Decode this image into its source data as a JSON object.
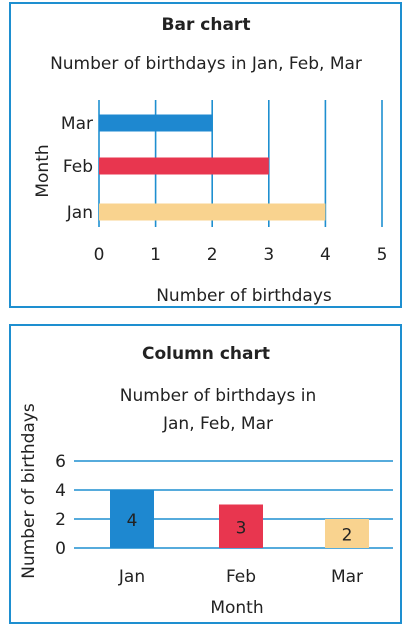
{
  "charts": [
    {
      "heading": "Bar chart",
      "title": "Number of birthdays in Jan, Feb, Mar",
      "xlabel": "Number of birthdays",
      "ylabel": "Month"
    },
    {
      "heading": "Column chart",
      "title_lines": [
        "Number of birthdays in",
        "Jan, Feb, Mar"
      ],
      "xlabel": "Month",
      "ylabel": "Number of birthdays"
    }
  ],
  "chart_data": [
    {
      "type": "bar",
      "orientation": "horizontal",
      "title": "Number of birthdays in Jan, Feb, Mar",
      "xlabel": "Number of birthdays",
      "ylabel": "Month",
      "categories": [
        "Jan",
        "Feb",
        "Mar"
      ],
      "values": [
        4,
        3,
        2
      ],
      "colors": [
        "#f9d38f",
        "#e8364f",
        "#1e88d0"
      ],
      "xlim": [
        0,
        5
      ],
      "xticks": [
        0,
        1,
        2,
        3,
        4,
        5
      ],
      "grid": "vertical"
    },
    {
      "type": "bar",
      "orientation": "vertical",
      "title": "Number of birthdays in Jan, Feb, Mar",
      "xlabel": "Month",
      "ylabel": "Number of birthdays",
      "categories": [
        "Jan",
        "Feb",
        "Mar"
      ],
      "values": [
        4,
        3,
        2
      ],
      "colors": [
        "#1e88d0",
        "#e8364f",
        "#f9d38f"
      ],
      "ylim": [
        0,
        6
      ],
      "yticks": [
        0,
        2,
        4,
        6
      ],
      "grid": "horizontal",
      "data_labels": true
    }
  ],
  "colors": {
    "frame": "#1e8fd0",
    "grid": "#1e8fd0",
    "text": "#222222"
  }
}
